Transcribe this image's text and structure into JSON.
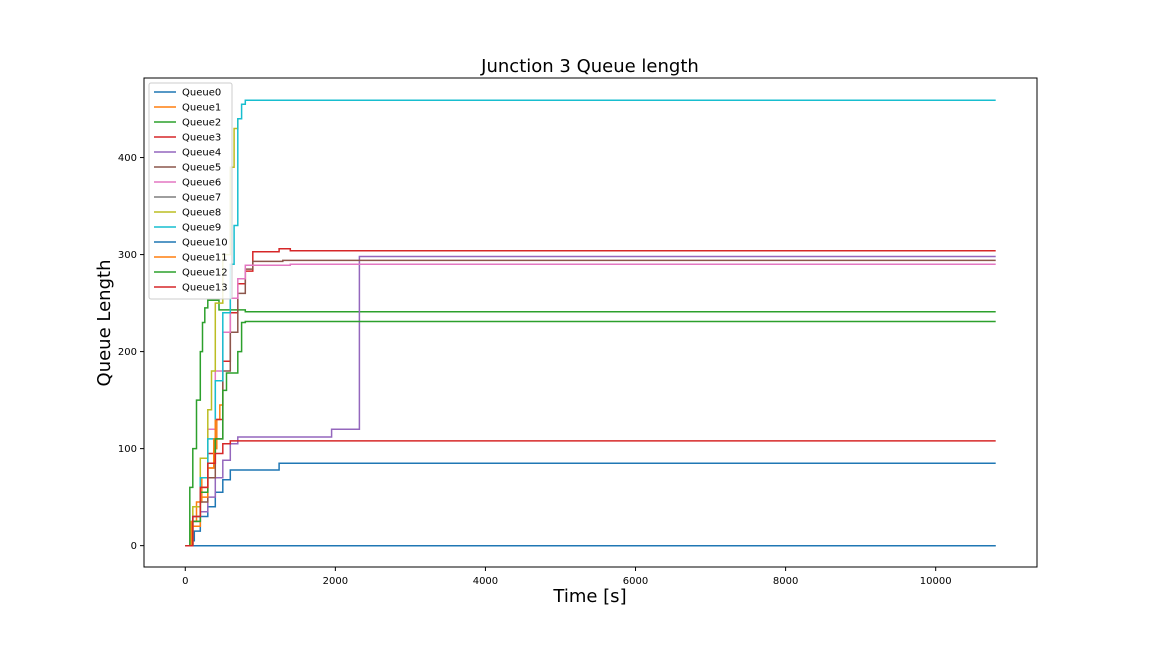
{
  "chart_data": {
    "type": "line",
    "title": "Junction 3 Queue length",
    "xlabel": "Time [s]",
    "ylabel": "Queue Length",
    "xlim": [
      -550,
      11350
    ],
    "ylim": [
      -22,
      482
    ],
    "xticks": [
      0,
      2000,
      4000,
      6000,
      8000,
      10000
    ],
    "yticks": [
      0,
      100,
      200,
      300,
      400
    ],
    "grid": false,
    "legend_position": "top-left",
    "series": [
      {
        "name": "Queue0",
        "color": "#1f77b4",
        "x": [
          0,
          100,
          120,
          200,
          300,
          400,
          500,
          600,
          900,
          1250,
          1300,
          10800
        ],
        "y": [
          0,
          5,
          15,
          30,
          40,
          55,
          68,
          78,
          78,
          85,
          85,
          85
        ]
      },
      {
        "name": "Queue1",
        "color": "#ff7f0e",
        "x": [
          0,
          80,
          150,
          220,
          300,
          380,
          420,
          460,
          500
        ],
        "y": [
          0,
          25,
          45,
          70,
          80,
          100,
          130,
          145,
          160
        ]
      },
      {
        "name": "Queue2",
        "color": "#2ca02c",
        "x": [
          0,
          60,
          100,
          150,
          200,
          230,
          260,
          300,
          400,
          450,
          800,
          10800
        ],
        "y": [
          0,
          60,
          100,
          150,
          200,
          230,
          245,
          253,
          253,
          243,
          241,
          241
        ]
      },
      {
        "name": "Queue3",
        "color": "#d62728",
        "x": [
          0,
          100,
          200,
          300,
          400,
          500,
          600,
          700,
          800,
          900,
          1000,
          1250,
          1400,
          10800
        ],
        "y": [
          0,
          30,
          60,
          95,
          130,
          190,
          240,
          270,
          283,
          303,
          303,
          306,
          304,
          304
        ]
      },
      {
        "name": "Queue4",
        "color": "#9467bd",
        "x": [
          0,
          100,
          200,
          300,
          400,
          500,
          600,
          700,
          1900,
          1950,
          2300,
          2320,
          10800
        ],
        "y": [
          0,
          20,
          35,
          50,
          70,
          88,
          105,
          112,
          112,
          120,
          120,
          298,
          298
        ]
      },
      {
        "name": "Queue5",
        "color": "#8c564b",
        "x": [
          0,
          100,
          200,
          300,
          400,
          500,
          600,
          700,
          800,
          900,
          1250,
          1300,
          10800
        ],
        "y": [
          0,
          25,
          45,
          70,
          110,
          180,
          220,
          260,
          285,
          293,
          293,
          294,
          294
        ]
      },
      {
        "name": "Queue6",
        "color": "#e377c2",
        "x": [
          0,
          100,
          200,
          300,
          400,
          500,
          600,
          700,
          800,
          1400,
          10800
        ],
        "y": [
          0,
          30,
          70,
          120,
          180,
          220,
          255,
          275,
          289,
          290,
          290
        ]
      },
      {
        "name": "Queue7",
        "color": "#7f7f7f",
        "x": [
          0,
          10800
        ],
        "y": [
          0,
          0
        ]
      },
      {
        "name": "Queue8",
        "color": "#bcbd22",
        "x": [
          0,
          100,
          200,
          300,
          350,
          400,
          500,
          600,
          650,
          700
        ],
        "y": [
          0,
          40,
          90,
          140,
          180,
          250,
          300,
          390,
          430,
          440
        ]
      },
      {
        "name": "Queue9",
        "color": "#17becf",
        "x": [
          0,
          100,
          200,
          300,
          400,
          500,
          600,
          650,
          700,
          750,
          800,
          10800
        ],
        "y": [
          0,
          30,
          70,
          110,
          170,
          240,
          290,
          330,
          440,
          455,
          459,
          459
        ]
      },
      {
        "name": "Queue10",
        "color": "#1f77b4",
        "x": [
          0,
          10800
        ],
        "y": [
          0,
          0
        ]
      },
      {
        "name": "Queue11",
        "color": "#ff7f0e",
        "x": [
          0,
          100,
          200,
          300,
          380,
          400
        ],
        "y": [
          0,
          20,
          50,
          80,
          110,
          130
        ]
      },
      {
        "name": "Queue12",
        "color": "#2ca02c",
        "x": [
          0,
          100,
          200,
          300,
          400,
          500,
          550,
          600,
          700,
          750,
          800,
          10800
        ],
        "y": [
          0,
          25,
          55,
          85,
          110,
          160,
          178,
          178,
          200,
          230,
          231,
          231
        ]
      },
      {
        "name": "Queue13",
        "color": "#d62728",
        "x": [
          0,
          100,
          200,
          300,
          400,
          500,
          600,
          10800
        ],
        "y": [
          0,
          30,
          60,
          85,
          95,
          105,
          108,
          108
        ]
      }
    ]
  }
}
